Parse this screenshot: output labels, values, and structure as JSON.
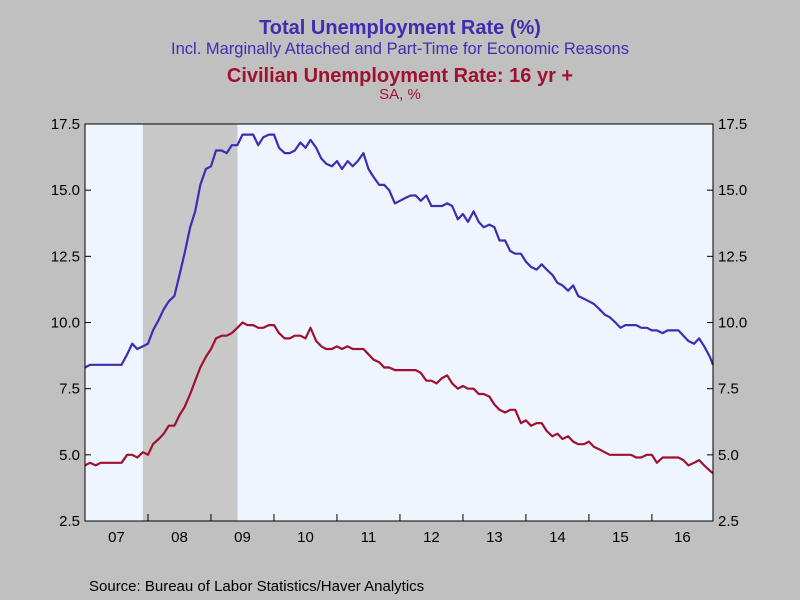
{
  "titles": {
    "line1": "Total Unemployment Rate (%)",
    "line2": "Incl. Marginally Attached and Part-Time for Economic Reasons",
    "line3": "Civilian Unemployment Rate: 16 yr +",
    "line4": "SA, %"
  },
  "source": "Source:  Bureau of Labor Statistics/Haver Analytics",
  "colors": {
    "background": "#c0c0c0",
    "plot_area": "#eef5fe",
    "recession": "#c8c8c8",
    "series1": "#3f2db0",
    "series2": "#a0112f"
  },
  "chart_data": {
    "type": "line",
    "x_unit": "year",
    "x_range": [
      2007.0,
      2016.97
    ],
    "ylim": [
      2.5,
      17.5
    ],
    "y_ticks": [
      "2.5",
      "5.0",
      "7.5",
      "10.0",
      "12.5",
      "15.0",
      "17.5"
    ],
    "x_ticks": [
      "07",
      "08",
      "09",
      "10",
      "11",
      "12",
      "13",
      "14",
      "15",
      "16"
    ],
    "grid": false,
    "dual_axis_mirrored": true,
    "recession_shading": {
      "start": 2007.92,
      "end": 2009.42
    },
    "series": [
      {
        "label": "Total Unemployment Rate (%)",
        "color": "#3f2db0",
        "points": [
          [
            2007.0,
            8.3
          ],
          [
            2007.08,
            8.4
          ],
          [
            2007.17,
            8.4
          ],
          [
            2007.25,
            8.4
          ],
          [
            2007.33,
            8.4
          ],
          [
            2007.42,
            8.4
          ],
          [
            2007.5,
            8.4
          ],
          [
            2007.58,
            8.4
          ],
          [
            2007.67,
            8.8
          ],
          [
            2007.75,
            9.2
          ],
          [
            2007.83,
            9.0
          ],
          [
            2007.92,
            9.1
          ],
          [
            2008.0,
            9.2
          ],
          [
            2008.08,
            9.7
          ],
          [
            2008.17,
            10.1
          ],
          [
            2008.25,
            10.5
          ],
          [
            2008.33,
            10.8
          ],
          [
            2008.42,
            11.0
          ],
          [
            2008.5,
            11.8
          ],
          [
            2008.58,
            12.6
          ],
          [
            2008.67,
            13.6
          ],
          [
            2008.75,
            14.2
          ],
          [
            2008.83,
            15.2
          ],
          [
            2008.92,
            15.8
          ],
          [
            2009.0,
            15.9
          ],
          [
            2009.08,
            16.5
          ],
          [
            2009.17,
            16.5
          ],
          [
            2009.25,
            16.4
          ],
          [
            2009.33,
            16.7
          ],
          [
            2009.42,
            16.7
          ],
          [
            2009.5,
            17.1
          ],
          [
            2009.58,
            17.1
          ],
          [
            2009.67,
            17.1
          ],
          [
            2009.75,
            16.7
          ],
          [
            2009.83,
            17.0
          ],
          [
            2009.92,
            17.1
          ],
          [
            2010.0,
            17.1
          ],
          [
            2010.08,
            16.6
          ],
          [
            2010.17,
            16.4
          ],
          [
            2010.25,
            16.4
          ],
          [
            2010.33,
            16.5
          ],
          [
            2010.42,
            16.8
          ],
          [
            2010.5,
            16.6
          ],
          [
            2010.58,
            16.9
          ],
          [
            2010.67,
            16.6
          ],
          [
            2010.75,
            16.2
          ],
          [
            2010.83,
            16.0
          ],
          [
            2010.92,
            15.9
          ],
          [
            2011.0,
            16.1
          ],
          [
            2011.08,
            15.8
          ],
          [
            2011.17,
            16.1
          ],
          [
            2011.25,
            15.9
          ],
          [
            2011.33,
            16.1
          ],
          [
            2011.42,
            16.4
          ],
          [
            2011.5,
            15.8
          ],
          [
            2011.58,
            15.5
          ],
          [
            2011.67,
            15.2
          ],
          [
            2011.75,
            15.2
          ],
          [
            2011.83,
            15.0
          ],
          [
            2011.92,
            14.5
          ],
          [
            2012.0,
            14.6
          ],
          [
            2012.08,
            14.7
          ],
          [
            2012.17,
            14.8
          ],
          [
            2012.25,
            14.8
          ],
          [
            2012.33,
            14.6
          ],
          [
            2012.42,
            14.8
          ],
          [
            2012.5,
            14.4
          ],
          [
            2012.58,
            14.4
          ],
          [
            2012.67,
            14.4
          ],
          [
            2012.75,
            14.5
          ],
          [
            2012.83,
            14.4
          ],
          [
            2012.92,
            13.9
          ],
          [
            2013.0,
            14.1
          ],
          [
            2013.08,
            13.8
          ],
          [
            2013.17,
            14.2
          ],
          [
            2013.25,
            13.8
          ],
          [
            2013.33,
            13.6
          ],
          [
            2013.42,
            13.7
          ],
          [
            2013.5,
            13.6
          ],
          [
            2013.58,
            13.1
          ],
          [
            2013.67,
            13.1
          ],
          [
            2013.75,
            12.7
          ],
          [
            2013.83,
            12.6
          ],
          [
            2013.92,
            12.6
          ],
          [
            2014.0,
            12.3
          ],
          [
            2014.08,
            12.1
          ],
          [
            2014.17,
            12.0
          ],
          [
            2014.25,
            12.2
          ],
          [
            2014.33,
            12.0
          ],
          [
            2014.42,
            11.8
          ],
          [
            2014.5,
            11.5
          ],
          [
            2014.58,
            11.4
          ],
          [
            2014.67,
            11.2
          ],
          [
            2014.75,
            11.4
          ],
          [
            2014.83,
            11.0
          ],
          [
            2014.92,
            10.9
          ],
          [
            2015.0,
            10.8
          ],
          [
            2015.08,
            10.7
          ],
          [
            2015.17,
            10.5
          ],
          [
            2015.25,
            10.3
          ],
          [
            2015.33,
            10.2
          ],
          [
            2015.42,
            10.0
          ],
          [
            2015.5,
            9.8
          ],
          [
            2015.58,
            9.9
          ],
          [
            2015.67,
            9.9
          ],
          [
            2015.75,
            9.9
          ],
          [
            2015.83,
            9.8
          ],
          [
            2015.92,
            9.8
          ],
          [
            2016.0,
            9.7
          ],
          [
            2016.08,
            9.7
          ],
          [
            2016.17,
            9.6
          ],
          [
            2016.25,
            9.7
          ],
          [
            2016.33,
            9.7
          ],
          [
            2016.42,
            9.7
          ],
          [
            2016.5,
            9.5
          ],
          [
            2016.58,
            9.3
          ],
          [
            2016.67,
            9.2
          ],
          [
            2016.75,
            9.4
          ],
          [
            2016.83,
            9.1
          ],
          [
            2016.92,
            8.7
          ],
          [
            2016.97,
            8.4
          ]
        ]
      },
      {
        "label": "Civilian Unemployment Rate: 16 yr +",
        "color": "#a0112f",
        "points": [
          [
            2007.0,
            4.6
          ],
          [
            2007.08,
            4.7
          ],
          [
            2007.17,
            4.6
          ],
          [
            2007.25,
            4.7
          ],
          [
            2007.33,
            4.7
          ],
          [
            2007.42,
            4.7
          ],
          [
            2007.5,
            4.7
          ],
          [
            2007.58,
            4.7
          ],
          [
            2007.67,
            5.0
          ],
          [
            2007.75,
            5.0
          ],
          [
            2007.83,
            4.9
          ],
          [
            2007.92,
            5.1
          ],
          [
            2008.0,
            5.0
          ],
          [
            2008.08,
            5.4
          ],
          [
            2008.17,
            5.6
          ],
          [
            2008.25,
            5.8
          ],
          [
            2008.33,
            6.1
          ],
          [
            2008.42,
            6.1
          ],
          [
            2008.5,
            6.5
          ],
          [
            2008.58,
            6.8
          ],
          [
            2008.67,
            7.3
          ],
          [
            2008.75,
            7.8
          ],
          [
            2008.83,
            8.3
          ],
          [
            2008.92,
            8.7
          ],
          [
            2009.0,
            9.0
          ],
          [
            2009.08,
            9.4
          ],
          [
            2009.17,
            9.5
          ],
          [
            2009.25,
            9.5
          ],
          [
            2009.33,
            9.6
          ],
          [
            2009.42,
            9.8
          ],
          [
            2009.5,
            10.0
          ],
          [
            2009.58,
            9.9
          ],
          [
            2009.67,
            9.9
          ],
          [
            2009.75,
            9.8
          ],
          [
            2009.83,
            9.8
          ],
          [
            2009.92,
            9.9
          ],
          [
            2010.0,
            9.9
          ],
          [
            2010.08,
            9.6
          ],
          [
            2010.17,
            9.4
          ],
          [
            2010.25,
            9.4
          ],
          [
            2010.33,
            9.5
          ],
          [
            2010.42,
            9.5
          ],
          [
            2010.5,
            9.4
          ],
          [
            2010.58,
            9.8
          ],
          [
            2010.67,
            9.3
          ],
          [
            2010.75,
            9.1
          ],
          [
            2010.83,
            9.0
          ],
          [
            2010.92,
            9.0
          ],
          [
            2011.0,
            9.1
          ],
          [
            2011.08,
            9.0
          ],
          [
            2011.17,
            9.1
          ],
          [
            2011.25,
            9.0
          ],
          [
            2011.33,
            9.0
          ],
          [
            2011.42,
            9.0
          ],
          [
            2011.5,
            8.8
          ],
          [
            2011.58,
            8.6
          ],
          [
            2011.67,
            8.5
          ],
          [
            2011.75,
            8.3
          ],
          [
            2011.83,
            8.3
          ],
          [
            2011.92,
            8.2
          ],
          [
            2012.0,
            8.2
          ],
          [
            2012.08,
            8.2
          ],
          [
            2012.17,
            8.2
          ],
          [
            2012.25,
            8.2
          ],
          [
            2012.33,
            8.1
          ],
          [
            2012.42,
            7.8
          ],
          [
            2012.5,
            7.8
          ],
          [
            2012.58,
            7.7
          ],
          [
            2012.67,
            7.9
          ],
          [
            2012.75,
            8.0
          ],
          [
            2012.83,
            7.7
          ],
          [
            2012.92,
            7.5
          ],
          [
            2013.0,
            7.6
          ],
          [
            2013.08,
            7.5
          ],
          [
            2013.17,
            7.5
          ],
          [
            2013.25,
            7.3
          ],
          [
            2013.33,
            7.3
          ],
          [
            2013.42,
            7.2
          ],
          [
            2013.5,
            6.9
          ],
          [
            2013.58,
            6.7
          ],
          [
            2013.67,
            6.6
          ],
          [
            2013.75,
            6.7
          ],
          [
            2013.83,
            6.7
          ],
          [
            2013.92,
            6.2
          ],
          [
            2014.0,
            6.3
          ],
          [
            2014.08,
            6.1
          ],
          [
            2014.17,
            6.2
          ],
          [
            2014.25,
            6.2
          ],
          [
            2014.33,
            5.9
          ],
          [
            2014.42,
            5.7
          ],
          [
            2014.5,
            5.8
          ],
          [
            2014.58,
            5.6
          ],
          [
            2014.67,
            5.7
          ],
          [
            2014.75,
            5.5
          ],
          [
            2014.83,
            5.4
          ],
          [
            2014.92,
            5.4
          ],
          [
            2015.0,
            5.5
          ],
          [
            2015.08,
            5.3
          ],
          [
            2015.17,
            5.2
          ],
          [
            2015.25,
            5.1
          ],
          [
            2015.33,
            5.0
          ],
          [
            2015.42,
            5.0
          ],
          [
            2015.5,
            5.0
          ],
          [
            2015.58,
            5.0
          ],
          [
            2015.67,
            5.0
          ],
          [
            2015.75,
            4.9
          ],
          [
            2015.83,
            4.9
          ],
          [
            2015.92,
            5.0
          ],
          [
            2016.0,
            5.0
          ],
          [
            2016.08,
            4.7
          ],
          [
            2016.17,
            4.9
          ],
          [
            2016.25,
            4.9
          ],
          [
            2016.33,
            4.9
          ],
          [
            2016.42,
            4.9
          ],
          [
            2016.5,
            4.8
          ],
          [
            2016.58,
            4.6
          ],
          [
            2016.67,
            4.7
          ],
          [
            2016.75,
            4.8
          ],
          [
            2016.83,
            4.6
          ],
          [
            2016.92,
            4.4
          ],
          [
            2016.97,
            4.3
          ]
        ]
      }
    ]
  }
}
